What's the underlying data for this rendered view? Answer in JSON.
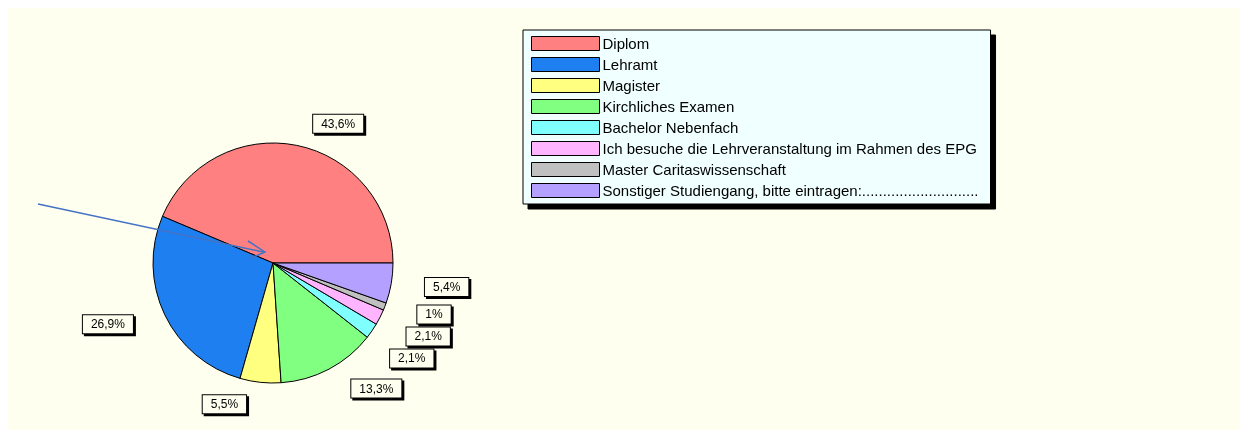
{
  "chart_data": {
    "type": "pie",
    "categories": [
      "Diplom",
      "Lehramt",
      "Magister",
      "Kirchliches Examen",
      "Bachelor Nebenfach",
      "Ich besuche die Lehrveranstaltung im Rahmen des EPG",
      "Master Caritaswissenschaft",
      "Sonstiger Studiengang, bitte eintragen:............................"
    ],
    "values": [
      43.6,
      26.9,
      5.5,
      13.3,
      2.1,
      2.1,
      1,
      5.4
    ],
    "value_labels": [
      "43,6%",
      "26,9%",
      "5,5%",
      "13,3%",
      "2,1%",
      "2,1%",
      "1%",
      "5,4%"
    ],
    "colors": [
      "#ff8080",
      "#1e80f0",
      "#ffff80",
      "#80ff80",
      "#80ffff",
      "#ffb4ff",
      "#c0c0c0",
      "#b4a0ff"
    ],
    "legend": "top right"
  }
}
